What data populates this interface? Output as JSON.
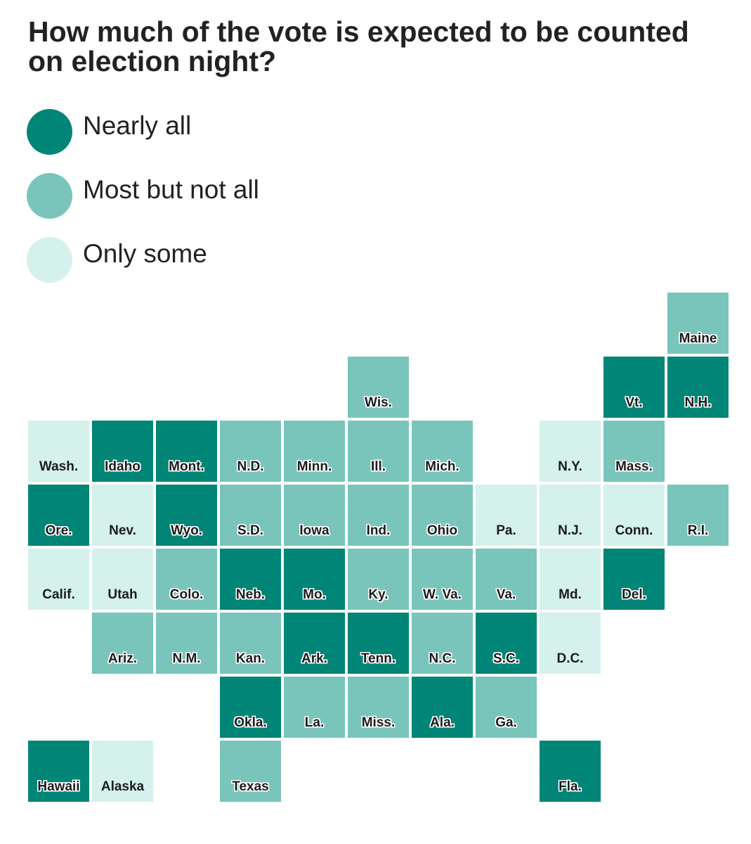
{
  "title": "How much of the vote is expected to be counted on election night?",
  "legend": [
    {
      "key": "nearly_all",
      "label": "Nearly all",
      "color": "#008577"
    },
    {
      "key": "most",
      "label": "Most but not all",
      "color": "#79c5bc"
    },
    {
      "key": "only_some",
      "label": "Only some",
      "color": "#d4f1ec"
    }
  ],
  "map_data": {
    "states": [
      {
        "abbr": "Maine",
        "category": "most",
        "row": 0,
        "col": 10
      },
      {
        "abbr": "Wis.",
        "category": "most",
        "row": 1,
        "col": 5
      },
      {
        "abbr": "Vt.",
        "category": "nearly_all",
        "row": 1,
        "col": 9
      },
      {
        "abbr": "N.H.",
        "category": "nearly_all",
        "row": 1,
        "col": 10
      },
      {
        "abbr": "Wash.",
        "category": "only_some",
        "row": 2,
        "col": 0
      },
      {
        "abbr": "Idaho",
        "category": "nearly_all",
        "row": 2,
        "col": 1
      },
      {
        "abbr": "Mont.",
        "category": "nearly_all",
        "row": 2,
        "col": 2
      },
      {
        "abbr": "N.D.",
        "category": "most",
        "row": 2,
        "col": 3
      },
      {
        "abbr": "Minn.",
        "category": "most",
        "row": 2,
        "col": 4
      },
      {
        "abbr": "Ill.",
        "category": "most",
        "row": 2,
        "col": 5
      },
      {
        "abbr": "Mich.",
        "category": "most",
        "row": 2,
        "col": 6
      },
      {
        "abbr": "N.Y.",
        "category": "only_some",
        "row": 2,
        "col": 8
      },
      {
        "abbr": "Mass.",
        "category": "most",
        "row": 2,
        "col": 9
      },
      {
        "abbr": "Ore.",
        "category": "nearly_all",
        "row": 3,
        "col": 0
      },
      {
        "abbr": "Nev.",
        "category": "only_some",
        "row": 3,
        "col": 1
      },
      {
        "abbr": "Wyo.",
        "category": "nearly_all",
        "row": 3,
        "col": 2
      },
      {
        "abbr": "S.D.",
        "category": "most",
        "row": 3,
        "col": 3
      },
      {
        "abbr": "Iowa",
        "category": "most",
        "row": 3,
        "col": 4
      },
      {
        "abbr": "Ind.",
        "category": "most",
        "row": 3,
        "col": 5
      },
      {
        "abbr": "Ohio",
        "category": "most",
        "row": 3,
        "col": 6
      },
      {
        "abbr": "Pa.",
        "category": "only_some",
        "row": 3,
        "col": 7
      },
      {
        "abbr": "N.J.",
        "category": "only_some",
        "row": 3,
        "col": 8
      },
      {
        "abbr": "Conn.",
        "category": "only_some",
        "row": 3,
        "col": 9
      },
      {
        "abbr": "R.I.",
        "category": "most",
        "row": 3,
        "col": 10
      },
      {
        "abbr": "Calif.",
        "category": "only_some",
        "row": 4,
        "col": 0
      },
      {
        "abbr": "Utah",
        "category": "only_some",
        "row": 4,
        "col": 1
      },
      {
        "abbr": "Colo.",
        "category": "most",
        "row": 4,
        "col": 2
      },
      {
        "abbr": "Neb.",
        "category": "nearly_all",
        "row": 4,
        "col": 3
      },
      {
        "abbr": "Mo.",
        "category": "nearly_all",
        "row": 4,
        "col": 4
      },
      {
        "abbr": "Ky.",
        "category": "most",
        "row": 4,
        "col": 5
      },
      {
        "abbr": "W. Va.",
        "category": "most",
        "row": 4,
        "col": 6
      },
      {
        "abbr": "Va.",
        "category": "most",
        "row": 4,
        "col": 7
      },
      {
        "abbr": "Md.",
        "category": "only_some",
        "row": 4,
        "col": 8
      },
      {
        "abbr": "Del.",
        "category": "nearly_all",
        "row": 4,
        "col": 9
      },
      {
        "abbr": "Ariz.",
        "category": "most",
        "row": 5,
        "col": 1
      },
      {
        "abbr": "N.M.",
        "category": "most",
        "row": 5,
        "col": 2
      },
      {
        "abbr": "Kan.",
        "category": "most",
        "row": 5,
        "col": 3
      },
      {
        "abbr": "Ark.",
        "category": "nearly_all",
        "row": 5,
        "col": 4
      },
      {
        "abbr": "Tenn.",
        "category": "nearly_all",
        "row": 5,
        "col": 5
      },
      {
        "abbr": "N.C.",
        "category": "most",
        "row": 5,
        "col": 6
      },
      {
        "abbr": "S.C.",
        "category": "nearly_all",
        "row": 5,
        "col": 7
      },
      {
        "abbr": "D.C.",
        "category": "only_some",
        "row": 5,
        "col": 8
      },
      {
        "abbr": "Okla.",
        "category": "nearly_all",
        "row": 6,
        "col": 3
      },
      {
        "abbr": "La.",
        "category": "most",
        "row": 6,
        "col": 4
      },
      {
        "abbr": "Miss.",
        "category": "most",
        "row": 6,
        "col": 5
      },
      {
        "abbr": "Ala.",
        "category": "nearly_all",
        "row": 6,
        "col": 6
      },
      {
        "abbr": "Ga.",
        "category": "most",
        "row": 6,
        "col": 7
      },
      {
        "abbr": "Hawaii",
        "category": "nearly_all",
        "row": 7,
        "col": 0
      },
      {
        "abbr": "Alaska",
        "category": "only_some",
        "row": 7,
        "col": 1
      },
      {
        "abbr": "Texas",
        "category": "most",
        "row": 7,
        "col": 3
      },
      {
        "abbr": "Fla.",
        "category": "nearly_all",
        "row": 7,
        "col": 8
      }
    ]
  }
}
